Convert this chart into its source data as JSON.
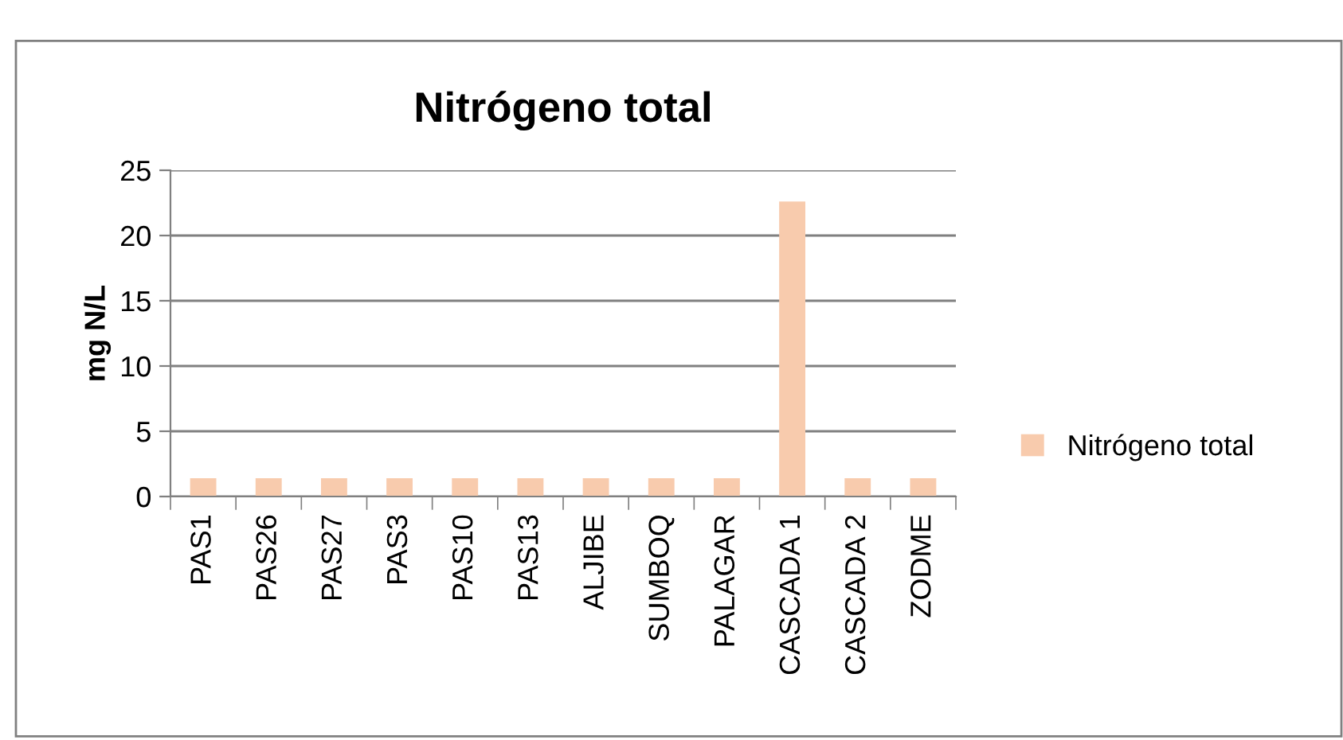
{
  "chart_data": {
    "type": "bar",
    "title": "Nitrógeno total",
    "ylabel": "mg N/L",
    "categories": [
      "PAS1",
      "PAS26",
      "PAS27",
      "PAS3",
      "PAS10",
      "PAS13",
      "ALJIBE",
      "SUMBOQ",
      "PALAGAR",
      "CASCADA 1",
      "CASCADA 2",
      "ZODME"
    ],
    "series": [
      {
        "name": "Nitrógeno total",
        "color": "#f8cbad",
        "values": [
          1.4,
          1.4,
          1.4,
          1.4,
          1.4,
          1.4,
          1.4,
          1.4,
          1.4,
          22.6,
          1.4,
          1.4
        ]
      }
    ],
    "ylim": [
      0,
      25
    ],
    "yticks": [
      0,
      5,
      10,
      15,
      20,
      25
    ],
    "grid": "y",
    "legend": "right"
  }
}
